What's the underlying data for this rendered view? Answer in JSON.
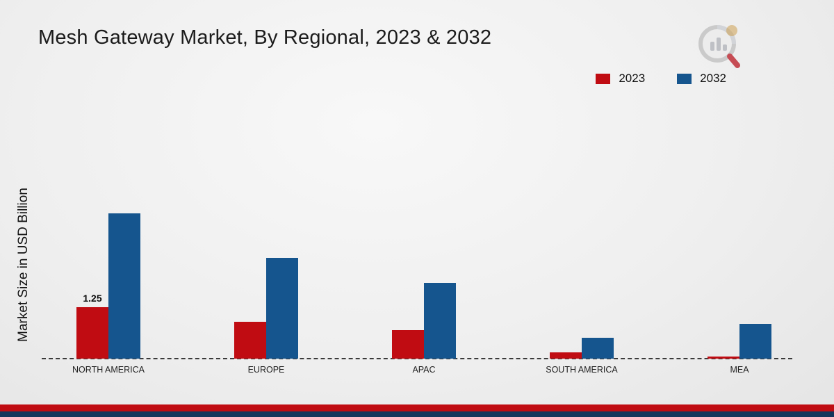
{
  "title": "Mesh Gateway Market, By Regional, 2023 & 2032",
  "ylabel": "Market Size in USD Billion",
  "legend": [
    {
      "label": "2023",
      "color": "#c00c12"
    },
    {
      "label": "2032",
      "color": "#15558e"
    }
  ],
  "colors": {
    "accent_red": "#c00c12",
    "accent_blue": "#15558e",
    "footer_navy": "#14365c"
  },
  "logo": "bar-chart-magnifier-logo",
  "chart_data": {
    "type": "bar",
    "title": "Mesh Gateway Market, By Regional, 2023 & 2032",
    "xlabel": "",
    "ylabel": "Market Size in USD Billion",
    "categories": [
      "NORTH AMERICA",
      "EUROPE",
      "APAC",
      "SOUTH AMERICA",
      "MEA"
    ],
    "series": [
      {
        "name": "2023",
        "color": "#c00c12",
        "values": [
          1.25,
          0.9,
          0.7,
          0.15,
          0.05
        ]
      },
      {
        "name": "2032",
        "color": "#15558e",
        "values": [
          3.55,
          2.45,
          1.85,
          0.5,
          0.85
        ]
      }
    ],
    "annotations": [
      {
        "series": "2023",
        "category": "NORTH AMERICA",
        "text": "1.25"
      }
    ],
    "ylim": [
      0,
      4
    ],
    "grid": false,
    "baseline_style": "dashed",
    "legend_position": "top-right"
  }
}
